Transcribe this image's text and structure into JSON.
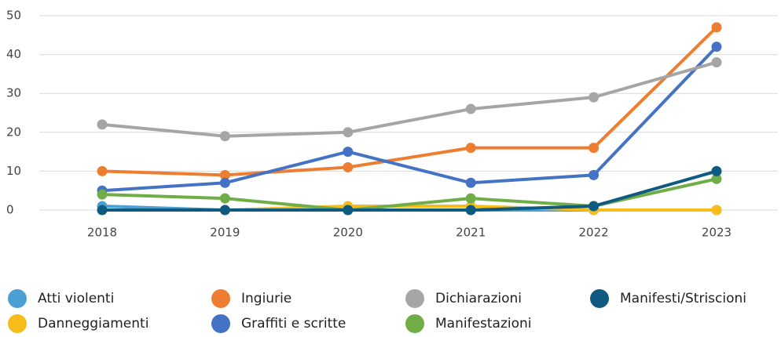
{
  "chart_data": {
    "type": "line",
    "x": [
      "2018",
      "2019",
      "2020",
      "2021",
      "2022",
      "2023"
    ],
    "ylim": [
      0,
      50
    ],
    "yticks": [
      0,
      10,
      20,
      30,
      40,
      50
    ],
    "grid": true,
    "legend": "bottom",
    "series": [
      {
        "name": "Atti violenti",
        "color": "#4aa0d5",
        "values": [
          1,
          0,
          0,
          0,
          0,
          0
        ]
      },
      {
        "name": "Danneggiamenti",
        "color": "#f5bc1c",
        "values": [
          0,
          0,
          1,
          1,
          0,
          0
        ]
      },
      {
        "name": "Ingiurie",
        "color": "#ed7d31",
        "values": [
          10,
          9,
          11,
          16,
          16,
          47
        ]
      },
      {
        "name": "Graffiti e scritte",
        "color": "#4472c4",
        "values": [
          5,
          7,
          15,
          7,
          9,
          42
        ]
      },
      {
        "name": "Dichiarazioni",
        "color": "#a5a5a5",
        "values": [
          22,
          19,
          20,
          26,
          29,
          38
        ]
      },
      {
        "name": "Manifestazioni",
        "color": "#70ad47",
        "values": [
          4,
          3,
          0,
          3,
          1,
          8
        ]
      },
      {
        "name": "Manifesti/Striscioni",
        "color": "#0e5a80",
        "values": [
          0,
          0,
          0,
          0,
          1,
          10
        ]
      }
    ]
  }
}
